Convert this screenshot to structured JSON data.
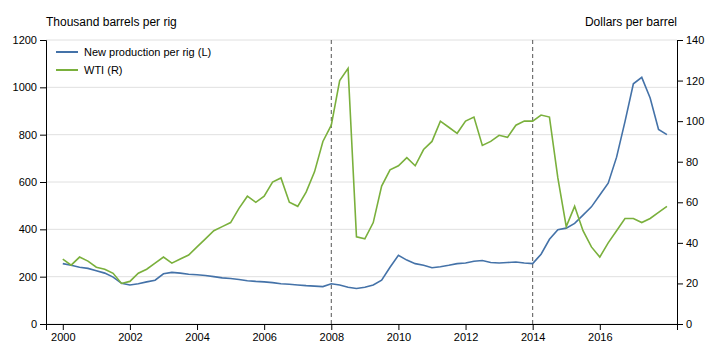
{
  "chart_data": {
    "type": "line",
    "ylabel": "Thousand barrels per rig",
    "y2label": "Dollars per barrel",
    "x": [
      2000.0,
      2000.25,
      2000.5,
      2000.75,
      2001.0,
      2001.25,
      2001.5,
      2001.75,
      2002.0,
      2002.25,
      2002.5,
      2002.75,
      2003.0,
      2003.25,
      2003.5,
      2003.75,
      2004.0,
      2004.25,
      2004.5,
      2004.75,
      2005.0,
      2005.25,
      2005.5,
      2005.75,
      2006.0,
      2006.25,
      2006.5,
      2006.75,
      2007.0,
      2007.25,
      2007.5,
      2007.75,
      2008.0,
      2008.25,
      2008.5,
      2008.75,
      2009.0,
      2009.25,
      2009.5,
      2009.75,
      2010.0,
      2010.25,
      2010.5,
      2010.75,
      2011.0,
      2011.25,
      2011.5,
      2011.75,
      2012.0,
      2012.25,
      2012.5,
      2012.75,
      2013.0,
      2013.25,
      2013.5,
      2013.75,
      2014.0,
      2014.25,
      2014.5,
      2014.75,
      2015.0,
      2015.25,
      2015.5,
      2015.75,
      2016.0,
      2016.25,
      2016.5,
      2016.75,
      2017.0,
      2017.25,
      2017.5,
      2017.75,
      2018.0
    ],
    "series": [
      {
        "name": "New production per rig (L)",
        "color": "#4472a8",
        "values": [
          255,
          248,
          240,
          235,
          225,
          215,
          198,
          172,
          165,
          170,
          178,
          185,
          212,
          218,
          215,
          210,
          208,
          205,
          200,
          195,
          192,
          188,
          183,
          180,
          178,
          175,
          170,
          168,
          165,
          162,
          160,
          158,
          170,
          165,
          155,
          150,
          155,
          165,
          185,
          240,
          290,
          270,
          255,
          248,
          238,
          242,
          248,
          255,
          258,
          265,
          268,
          260,
          258,
          260,
          262,
          258,
          255,
          295,
          358,
          398,
          405,
          425,
          460,
          495,
          545,
          595,
          705,
          855,
          1015,
          1042,
          955,
          822,
          800
        ]
      },
      {
        "name": "WTI (R)",
        "color": "#7ab03c",
        "axis": "y2",
        "values": [
          32,
          29,
          33,
          31,
          28,
          27,
          25,
          20,
          21,
          25,
          27,
          30,
          33,
          30,
          32,
          34,
          38,
          42,
          46,
          48,
          50,
          57,
          63,
          60,
          63,
          70,
          72,
          60,
          58,
          65,
          75,
          90,
          98,
          120,
          126,
          43,
          42,
          50,
          68,
          76,
          78,
          82,
          78,
          86,
          90,
          100,
          97,
          94,
          100,
          102,
          88,
          90,
          93,
          92,
          98,
          100,
          100,
          103,
          102,
          72,
          48,
          58,
          46,
          38,
          33,
          40,
          46,
          52,
          52,
          50,
          52,
          55,
          58
        ]
      }
    ],
    "xlim": [
      1999.5,
      2018.3
    ],
    "xticks": [
      2000,
      2002,
      2004,
      2006,
      2008,
      2010,
      2012,
      2014,
      2016
    ],
    "ylim": [
      0,
      1200
    ],
    "yticks": [
      0,
      200,
      400,
      600,
      800,
      1000,
      1200
    ],
    "y2lim": [
      0,
      140
    ],
    "y2ticks": [
      0,
      20,
      40,
      60,
      80,
      100,
      120,
      140
    ],
    "vlines": [
      2008,
      2014
    ],
    "grid": true,
    "legend": "top-left"
  }
}
